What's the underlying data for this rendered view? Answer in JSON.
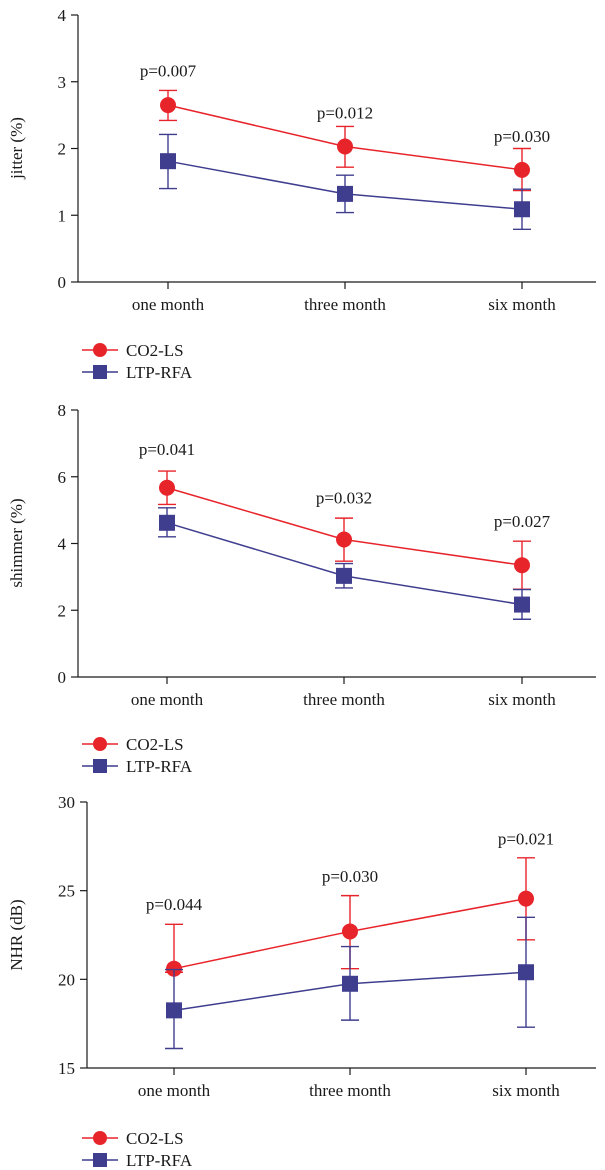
{
  "colors": {
    "CO2-LS": "#e8242b",
    "LTP-RFA": "#3f3d8e",
    "axis": "#1a1a1a"
  },
  "chart_data": [
    {
      "type": "line",
      "ylabel": "jitter (%)",
      "categories": [
        "one month",
        "three month",
        "six month"
      ],
      "ylim": [
        0,
        4
      ],
      "yticks": [
        "0",
        "1",
        "2",
        "3",
        "4"
      ],
      "series": [
        {
          "name": "CO2-LS",
          "marker": "circle",
          "values": [
            2.65,
            2.03,
            1.68
          ],
          "err_upper": [
            2.87,
            2.33,
            2.0
          ],
          "err_lower": [
            2.42,
            1.72,
            1.37
          ]
        },
        {
          "name": "LTP-RFA",
          "marker": "square",
          "values": [
            1.81,
            1.32,
            1.09
          ],
          "err_upper": [
            2.21,
            1.6,
            1.39
          ],
          "err_lower": [
            1.4,
            1.04,
            0.79
          ]
        }
      ],
      "annotations": [
        "p=0.007",
        "p=0.012",
        "p=0.030"
      ],
      "annotation_y": [
        3.08,
        2.45,
        2.1
      ]
    },
    {
      "type": "line",
      "ylabel": "shimmer (%)",
      "categories": [
        "one month",
        "three month",
        "six month"
      ],
      "ylim": [
        0,
        8
      ],
      "yticks": [
        "0",
        "2",
        "4",
        "6",
        "8"
      ],
      "series": [
        {
          "name": "CO2-LS",
          "marker": "circle",
          "values": [
            5.67,
            4.12,
            3.35
          ],
          "err_upper": [
            6.17,
            4.76,
            4.07
          ],
          "err_lower": [
            5.17,
            3.47,
            2.63
          ]
        },
        {
          "name": "LTP-RFA",
          "marker": "square",
          "values": [
            4.62,
            3.03,
            2.17
          ],
          "err_upper": [
            5.07,
            3.4,
            2.62
          ],
          "err_lower": [
            4.2,
            2.67,
            1.73
          ]
        }
      ],
      "annotations": [
        "p=0.041",
        "p=0.032",
        "p=0.027"
      ],
      "annotation_y": [
        6.65,
        5.2,
        4.5
      ]
    },
    {
      "type": "line",
      "ylabel": "NHR (dB)",
      "categories": [
        "one month",
        "three month",
        "six month"
      ],
      "ylim": [
        15,
        30
      ],
      "yticks": [
        "15",
        "20",
        "25",
        "30"
      ],
      "series": [
        {
          "name": "CO2-LS",
          "marker": "circle",
          "values": [
            20.6,
            22.7,
            24.55
          ],
          "err_upper": [
            23.1,
            24.72,
            26.85
          ],
          "err_lower": [
            20.4,
            20.6,
            22.23
          ]
        },
        {
          "name": "LTP-RFA",
          "marker": "square",
          "values": [
            18.25,
            19.75,
            20.4
          ],
          "err_upper": [
            20.55,
            21.85,
            23.5
          ],
          "err_lower": [
            16.1,
            17.7,
            17.3
          ]
        }
      ],
      "annotations": [
        "p=0.044",
        "p=0.030",
        "p=0.021"
      ],
      "annotation_y": [
        23.9,
        25.5,
        27.6
      ]
    }
  ]
}
